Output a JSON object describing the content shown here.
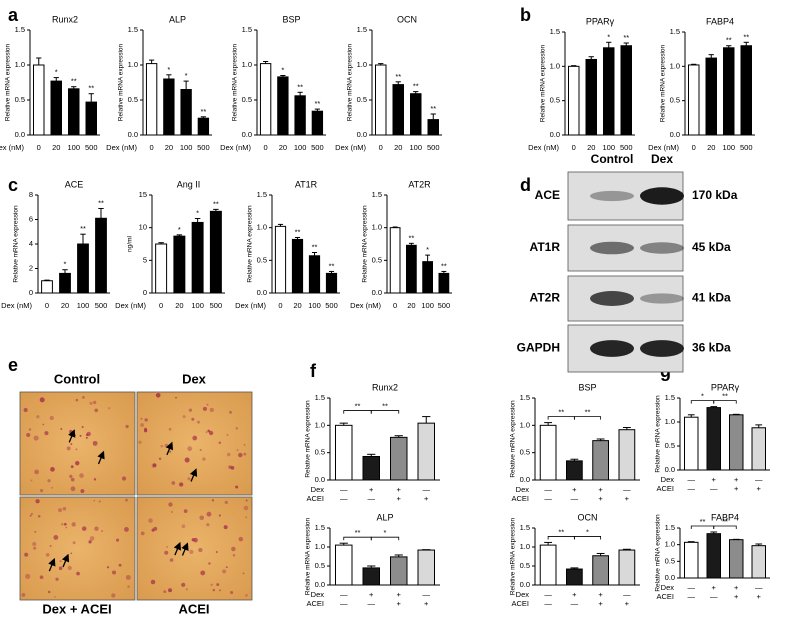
{
  "panels": [
    "a",
    "b",
    "c",
    "d",
    "e",
    "f",
    "g"
  ],
  "chart_data": [
    {
      "type": "bar",
      "title": "Runx2",
      "ylabel": "Relative mRNA expression",
      "xlabel": "Dex (nM)",
      "categories": [
        "0",
        "20",
        "100",
        "500"
      ],
      "values": [
        1.0,
        0.77,
        0.66,
        0.47
      ],
      "errors": [
        0.1,
        0.05,
        0.03,
        0.12
      ],
      "colors": [
        "#ffffff",
        "#000000",
        "#000000",
        "#000000"
      ],
      "ylim": [
        0,
        1.5
      ],
      "yticks": [
        {
          "value": 0,
          "label": "0.0"
        },
        0.5,
        {
          "value": 1,
          "label": "1.0"
        },
        1.5
      ],
      "annotations": [
        null,
        "*",
        "**",
        "**"
      ]
    },
    {
      "type": "bar",
      "title": "ALP",
      "ylabel": "Relative mRNA expression",
      "xlabel": "Dex (nM)",
      "categories": [
        "0",
        "20",
        "100",
        "500"
      ],
      "values": [
        1.02,
        0.8,
        0.65,
        0.24
      ],
      "errors": [
        0.05,
        0.06,
        0.12,
        0.02
      ],
      "colors": [
        "#ffffff",
        "#000000",
        "#000000",
        "#000000"
      ],
      "ylim": [
        0,
        1.5
      ],
      "yticks": [
        {
          "value": 0,
          "label": "0.0"
        },
        0.5,
        {
          "value": 1,
          "label": "1.0"
        },
        1.5
      ],
      "annotations": [
        null,
        "*",
        "*",
        "**"
      ]
    },
    {
      "type": "bar",
      "title": "BSP",
      "ylabel": "Relative mRNA expression",
      "xlabel": "Dex (nM)",
      "categories": [
        "0",
        "20",
        "100",
        "500"
      ],
      "values": [
        1.02,
        0.83,
        0.56,
        0.34
      ],
      "errors": [
        0.03,
        0.02,
        0.05,
        0.03
      ],
      "colors": [
        "#ffffff",
        "#000000",
        "#000000",
        "#000000"
      ],
      "ylim": [
        0,
        1.5
      ],
      "yticks": [
        {
          "value": 0,
          "label": "0.0"
        },
        0.5,
        {
          "value": 1,
          "label": "1.0"
        },
        1.5
      ],
      "annotations": [
        null,
        "*",
        "**",
        "**"
      ]
    },
    {
      "type": "bar",
      "title": "OCN",
      "ylabel": "Relative mRNA expression",
      "xlabel": "Dex (nM)",
      "categories": [
        "0",
        "20",
        "100",
        "500"
      ],
      "values": [
        1.0,
        0.72,
        0.59,
        0.22
      ],
      "errors": [
        0.02,
        0.04,
        0.03,
        0.08
      ],
      "colors": [
        "#ffffff",
        "#000000",
        "#000000",
        "#000000"
      ],
      "ylim": [
        0,
        1.5
      ],
      "yticks": [
        {
          "value": 0,
          "label": "0.0"
        },
        0.5,
        {
          "value": 1,
          "label": "1.0"
        },
        1.5
      ],
      "annotations": [
        null,
        "**",
        "**",
        "**"
      ]
    },
    {
      "type": "bar",
      "title": "PPARγ",
      "ylabel": "Relative mRNA expression",
      "xlabel": "Dex (nM)",
      "categories": [
        "0",
        "20",
        "100",
        "500"
      ],
      "values": [
        1.0,
        1.1,
        1.27,
        1.3
      ],
      "errors": [
        0.01,
        0.04,
        0.08,
        0.04
      ],
      "colors": [
        "#ffffff",
        "#000000",
        "#000000",
        "#000000"
      ],
      "ylim": [
        0,
        1.5
      ],
      "yticks": [
        {
          "value": 0,
          "label": "0.0"
        },
        0.5,
        {
          "value": 1,
          "label": "1.0"
        },
        1.5
      ],
      "annotations": [
        null,
        null,
        "*",
        "**"
      ]
    },
    {
      "type": "bar",
      "title": "FABP4",
      "ylabel": "Relative mRNA expression",
      "xlabel": "Dex (nM)",
      "categories": [
        "0",
        "20",
        "100",
        "500"
      ],
      "values": [
        1.02,
        1.12,
        1.27,
        1.3
      ],
      "errors": [
        0.01,
        0.05,
        0.03,
        0.05
      ],
      "colors": [
        "#ffffff",
        "#000000",
        "#000000",
        "#000000"
      ],
      "ylim": [
        0,
        1.5
      ],
      "yticks": [
        {
          "value": 0,
          "label": "0.0"
        },
        0.5,
        {
          "value": 1,
          "label": "1.0"
        },
        1.5
      ],
      "annotations": [
        null,
        null,
        "**",
        "**"
      ]
    },
    {
      "type": "bar",
      "title": "ACE",
      "ylabel": "Relative mRNA expression",
      "xlabel": "Dex (nM)",
      "categories": [
        "0",
        "20",
        "100",
        "500"
      ],
      "values": [
        1.0,
        1.6,
        4.0,
        6.1
      ],
      "errors": [
        0.05,
        0.3,
        0.8,
        0.8
      ],
      "colors": [
        "#ffffff",
        "#000000",
        "#000000",
        "#000000"
      ],
      "ylim": [
        0,
        8
      ],
      "yticks": [
        0,
        2,
        4,
        6,
        8
      ],
      "annotations": [
        null,
        "*",
        "**",
        "**"
      ]
    },
    {
      "type": "bar",
      "title": "Ang II",
      "ylabel": "ng/ml",
      "xlabel": "Dex (nM)",
      "categories": [
        "0",
        "20",
        "100",
        "500"
      ],
      "values": [
        7.5,
        8.7,
        10.8,
        12.5
      ],
      "errors": [
        0.2,
        0.2,
        0.6,
        0.3
      ],
      "colors": [
        "#ffffff",
        "#000000",
        "#000000",
        "#000000"
      ],
      "ylim": [
        0,
        15
      ],
      "yticks": [
        0,
        5,
        10,
        15
      ],
      "annotations": [
        null,
        "*",
        "*",
        "**"
      ]
    },
    {
      "type": "bar",
      "title": "AT1R",
      "ylabel": "Relative mRNA expression",
      "xlabel": "Dex (nM)",
      "categories": [
        "0",
        "20",
        "100",
        "500"
      ],
      "values": [
        1.02,
        0.82,
        0.57,
        0.3
      ],
      "errors": [
        0.03,
        0.03,
        0.05,
        0.03
      ],
      "colors": [
        "#ffffff",
        "#000000",
        "#000000",
        "#000000"
      ],
      "ylim": [
        0,
        1.5
      ],
      "yticks": [
        {
          "value": 0,
          "label": "0.0"
        },
        0.5,
        {
          "value": 1,
          "label": "1.0"
        },
        1.5
      ],
      "annotations": [
        null,
        "**",
        "**",
        "**"
      ]
    },
    {
      "type": "bar",
      "title": "AT2R",
      "ylabel": "Relative mRNA expression",
      "xlabel": "Dex (nM)",
      "categories": [
        "0",
        "20",
        "100",
        "500"
      ],
      "values": [
        1.0,
        0.73,
        0.48,
        0.3
      ],
      "errors": [
        0.01,
        0.03,
        0.1,
        0.03
      ],
      "colors": [
        "#ffffff",
        "#000000",
        "#000000",
        "#000000"
      ],
      "ylim": [
        0,
        1.5
      ],
      "yticks": [
        {
          "value": 0,
          "label": "0.0"
        },
        0.5,
        {
          "value": 1,
          "label": "1.0"
        },
        1.5
      ],
      "annotations": [
        null,
        "**",
        "*",
        "**"
      ]
    },
    {
      "type": "bar",
      "title": "Runx2",
      "ylabel": "Relative mRNA expression",
      "conditions": [
        {
          "name": "Dex",
          "values": [
            "—",
            "+",
            "+",
            "—"
          ]
        },
        {
          "name": "ACEI",
          "values": [
            "—",
            "—",
            "+",
            "+"
          ]
        }
      ],
      "values": [
        1.0,
        0.43,
        0.78,
        1.04
      ],
      "errors": [
        0.04,
        0.04,
        0.03,
        0.12
      ],
      "colors": [
        "#ffffff",
        "#1a1a1a",
        "#8c8c8c",
        "#d9d9d9"
      ],
      "ylim": [
        0,
        1.5
      ],
      "yticks": [
        {
          "value": 0,
          "label": "0.0"
        },
        0.5,
        {
          "value": 1,
          "label": "1.0"
        },
        1.5
      ],
      "comparisons": [
        {
          "from": 0,
          "to": 1,
          "label": "**"
        },
        {
          "from": 1,
          "to": 2,
          "label": "**"
        }
      ]
    },
    {
      "type": "bar",
      "title": "BSP",
      "ylabel": "Relative mRNA expression",
      "conditions": [
        {
          "name": "Dex",
          "values": [
            "—",
            "+",
            "+",
            "—"
          ]
        },
        {
          "name": "ACEI",
          "values": [
            "—",
            "—",
            "+",
            "+"
          ]
        }
      ],
      "values": [
        1.0,
        0.35,
        0.72,
        0.92
      ],
      "errors": [
        0.05,
        0.03,
        0.03,
        0.04
      ],
      "colors": [
        "#ffffff",
        "#1a1a1a",
        "#8c8c8c",
        "#d9d9d9"
      ],
      "ylim": [
        0,
        1.5
      ],
      "yticks": [
        {
          "value": 0,
          "label": "0.0"
        },
        0.5,
        {
          "value": 1,
          "label": "1.0"
        },
        1.5
      ],
      "comparisons": [
        {
          "from": 0,
          "to": 1,
          "label": "**"
        },
        {
          "from": 1,
          "to": 2,
          "label": "**"
        }
      ]
    },
    {
      "type": "bar",
      "title": "ALP",
      "ylabel": "Relative mRNA expression",
      "conditions": [
        {
          "name": "Dex",
          "values": [
            "—",
            "+",
            "+",
            "—"
          ]
        },
        {
          "name": "ACEI",
          "values": [
            "—",
            "—",
            "+",
            "+"
          ]
        }
      ],
      "values": [
        1.05,
        0.45,
        0.74,
        0.92
      ],
      "errors": [
        0.05,
        0.05,
        0.05,
        0.01
      ],
      "colors": [
        "#ffffff",
        "#1a1a1a",
        "#8c8c8c",
        "#d9d9d9"
      ],
      "ylim": [
        0,
        1.5
      ],
      "yticks": [
        {
          "value": 0,
          "label": "0.0"
        },
        0.5,
        {
          "value": 1,
          "label": "1.0"
        },
        1.5
      ],
      "comparisons": [
        {
          "from": 0,
          "to": 1,
          "label": "**"
        },
        {
          "from": 1,
          "to": 2,
          "label": "*"
        }
      ]
    },
    {
      "type": "bar",
      "title": "OCN",
      "ylabel": "Relative mRNA expression",
      "conditions": [
        {
          "name": "Dex",
          "values": [
            "—",
            "+",
            "+",
            "—"
          ]
        },
        {
          "name": "ACEI",
          "values": [
            "—",
            "—",
            "+",
            "+"
          ]
        }
      ],
      "values": [
        1.05,
        0.42,
        0.77,
        0.92
      ],
      "errors": [
        0.07,
        0.03,
        0.06,
        0.02
      ],
      "colors": [
        "#ffffff",
        "#1a1a1a",
        "#8c8c8c",
        "#d9d9d9"
      ],
      "ylim": [
        0,
        1.5
      ],
      "yticks": [
        {
          "value": 0,
          "label": "0.0"
        },
        0.5,
        {
          "value": 1,
          "label": "1.0"
        },
        1.5
      ],
      "comparisons": [
        {
          "from": 0,
          "to": 1,
          "label": "**"
        },
        {
          "from": 1,
          "to": 2,
          "label": "*"
        }
      ]
    },
    {
      "type": "bar",
      "title": "PPARγ",
      "ylabel": "Relative mRNA expression",
      "conditions": [
        {
          "name": "Dex",
          "values": [
            "—",
            "+",
            "+",
            "—"
          ]
        },
        {
          "name": "ACEI",
          "values": [
            "—",
            "—",
            "+",
            "+"
          ]
        }
      ],
      "values": [
        1.1,
        1.3,
        1.15,
        0.88
      ],
      "errors": [
        0.05,
        0.02,
        0.01,
        0.06
      ],
      "colors": [
        "#ffffff",
        "#1a1a1a",
        "#8c8c8c",
        "#d9d9d9"
      ],
      "ylim": [
        0,
        1.5
      ],
      "yticks": [
        {
          "value": 0,
          "label": "0.0"
        },
        0.5,
        {
          "value": 1,
          "label": "1.0"
        },
        1.5
      ],
      "comparisons": [
        {
          "from": 0,
          "to": 1,
          "label": "*"
        },
        {
          "from": 1,
          "to": 2,
          "label": "**"
        }
      ]
    },
    {
      "type": "bar",
      "title": "FABP4",
      "ylabel": "Relative mRNA expression",
      "conditions": [
        {
          "name": "Dex",
          "values": [
            "—",
            "+",
            "+",
            "—"
          ]
        },
        {
          "name": "ACEI",
          "values": [
            "—",
            "—",
            "+",
            "+"
          ]
        }
      ],
      "values": [
        1.07,
        1.33,
        1.15,
        0.97
      ],
      "errors": [
        0.02,
        0.05,
        0.01,
        0.05
      ],
      "colors": [
        "#ffffff",
        "#1a1a1a",
        "#8c8c8c",
        "#d9d9d9"
      ],
      "ylim": [
        0,
        1.5
      ],
      "yticks": [
        {
          "value": 0,
          "label": "0.0"
        },
        0.5,
        {
          "value": 1,
          "label": "1.0"
        },
        1.5
      ],
      "comparisons": [
        {
          "from": 0,
          "to": 1,
          "label": "**"
        },
        {
          "from": 1,
          "to": 2,
          "label": "**"
        }
      ]
    }
  ],
  "blot": {
    "columns": [
      "Control",
      "Dex"
    ],
    "rows": [
      {
        "label": "ACE",
        "size": "170 kDa"
      },
      {
        "label": "AT1R",
        "size": "45 kDa"
      },
      {
        "label": "AT2R",
        "size": "41 kDa"
      },
      {
        "label": "GAPDH",
        "size": "36 kDa"
      }
    ]
  },
  "histology": {
    "labels": [
      "Control",
      "Dex",
      "Dex + ACEI",
      "ACEI"
    ]
  }
}
